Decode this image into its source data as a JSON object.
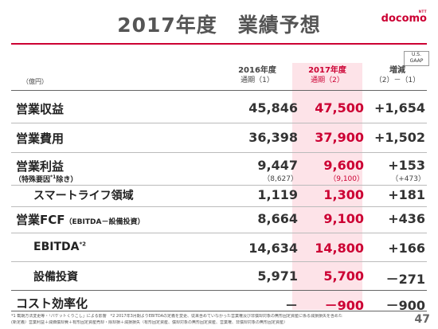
{
  "slide": {
    "title": "2017年度　業績予想",
    "page_number": "47"
  },
  "logo": {
    "ntt": "NTT",
    "docomo": "docomo",
    "color": "#cc0033"
  },
  "gaap": {
    "line1": "U.S.",
    "line2": "GAAP"
  },
  "columns": {
    "unit": "（億円）",
    "c2016": {
      "line1": "2016年度",
      "line2": "通期（1）"
    },
    "c2017": {
      "line1": "2017年度",
      "line2": "通期（2）"
    },
    "diff": {
      "line1": "増減",
      "line2": "（2）－（1）"
    }
  },
  "rows": {
    "revenue": {
      "label": "営業収益",
      "v2016": "45,846",
      "v2017": "47,500",
      "diff": "+1,654"
    },
    "expenses": {
      "label": "営業費用",
      "v2016": "36,398",
      "v2017": "37,900",
      "diff": "+1,502"
    },
    "op_income": {
      "label": "営業利益",
      "sublabel_pre": "（特殊要因",
      "sublabel_sup": "*1",
      "sublabel_post": "除き）",
      "v2016": "9,447",
      "v2017": "9,600",
      "diff": "+153",
      "n2016": "（8,627）",
      "n2017": "（9,100）",
      "ndiff": "（+473）"
    },
    "smart_life": {
      "label": "スマートライフ領域",
      "v2016": "1,119",
      "v2017": "1,300",
      "diff": "+181"
    },
    "op_fcf": {
      "label": "営業FCF",
      "sublabel": "（EBITDA－設備投資）",
      "v2016": "8,664",
      "v2017": "9,100",
      "diff": "+436"
    },
    "ebitda": {
      "label": "EBITDA",
      "sup": "*2",
      "v2016": "14,634",
      "v2017": "14,800",
      "diff": "+166"
    },
    "capex": {
      "label": "設備投資",
      "v2016": "5,971",
      "v2017": "5,700",
      "diff": "－271"
    },
    "cost": {
      "label": "コスト効率化",
      "v2016": "－",
      "v2017": "－900",
      "diff": "－900"
    }
  },
  "footnotes": {
    "line1": "*1 截期方法変更等・「パケットくりこし」による影響　*2 2017年3月期よりEBITDAの定義を変更、従来含めていなかった営業権及び非償却対象の無形固定資産に係る減損損失を含めた",
    "line2": "(新定義）営業利益＋減価償却費＋有形固定資産売却・除却損＋減損損失（有形固定資産、償却対象の無形固定資産、営業権、非償却対象の無形固定資産）"
  }
}
